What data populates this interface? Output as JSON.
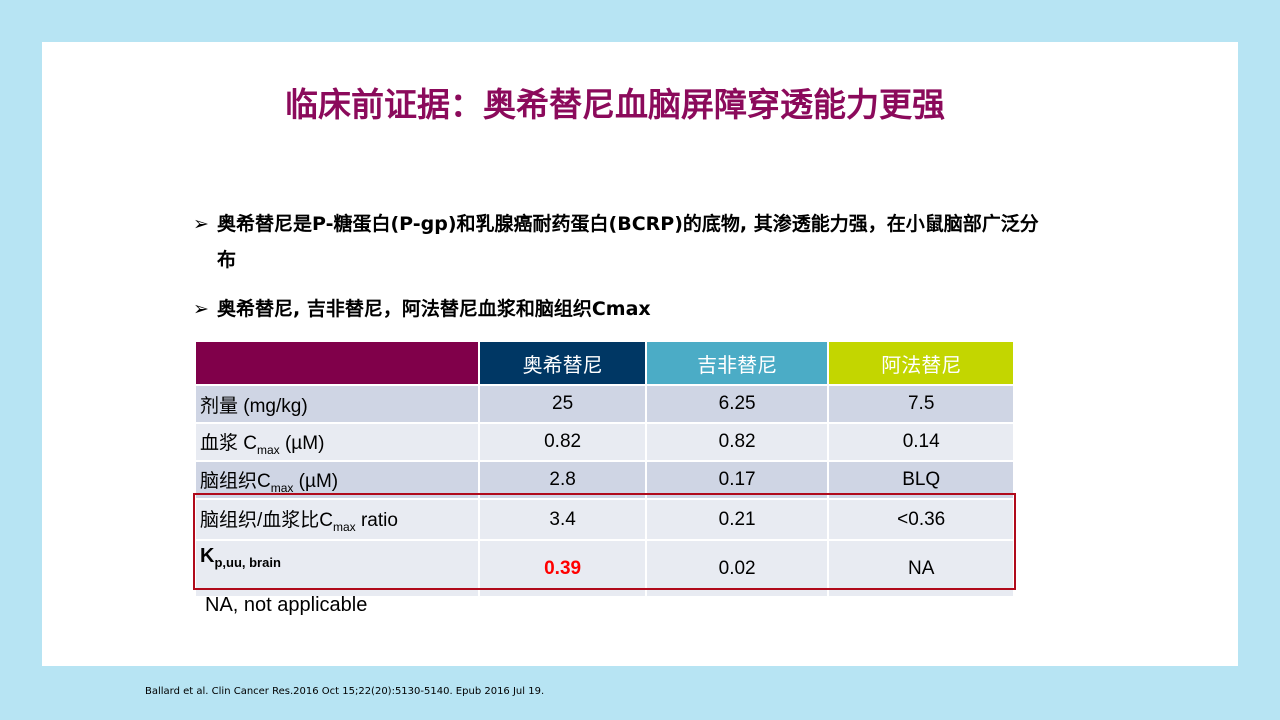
{
  "title": "临床前证据：奥希替尼血脑屏障穿透能力更强",
  "bullets": [
    {
      "icon": "arrow-bullet-icon",
      "text": "奥希替尼是P-糖蛋白(P-gp)和乳腺癌耐药蛋白(BCRP)的底物, 其渗透能力强，在小鼠脑部广泛分布"
    },
    {
      "icon": "arrow-bullet-icon",
      "text": "奥希替尼, 吉非替尼，阿法替尼血浆和脑组织Cmax"
    }
  ],
  "table": {
    "headers": [
      "",
      "奥希替尼",
      "吉非替尼",
      "阿法替尼"
    ],
    "header_colors": [
      "#80004a",
      "#003764",
      "#4bacc6",
      "#c3d600"
    ],
    "rows": [
      {
        "label": {
          "pre": "剂量 (mg/kg)",
          "sub": "",
          "post": ""
        },
        "values": [
          "25",
          "6.25",
          "7.5"
        ]
      },
      {
        "label": {
          "pre": "血浆 C",
          "sub": "max",
          "post": " (µM)"
        },
        "values": [
          "0.82",
          "0.82",
          "0.14"
        ]
      },
      {
        "label": {
          "pre": "脑组织C",
          "sub": "max",
          "post": " (µM)"
        },
        "values": [
          "2.8",
          "0.17",
          "BLQ"
        ]
      },
      {
        "label": {
          "pre": "脑组织/血浆比C",
          "sub": "max",
          "post": " ratio"
        },
        "values": [
          "3.4",
          "0.21",
          "<0.36"
        ]
      },
      {
        "label": {
          "pre": "K",
          "sub": "p,uu, brain",
          "post": ""
        },
        "values": [
          "0.39",
          "0.02",
          "NA"
        ]
      }
    ],
    "highlight_color": "#ff0000"
  },
  "note": "NA, not applicable",
  "citation": "Ballard et al. Clin Cancer Res.2016 Oct 15;22(20):5130-5140. Epub 2016 Jul 19."
}
